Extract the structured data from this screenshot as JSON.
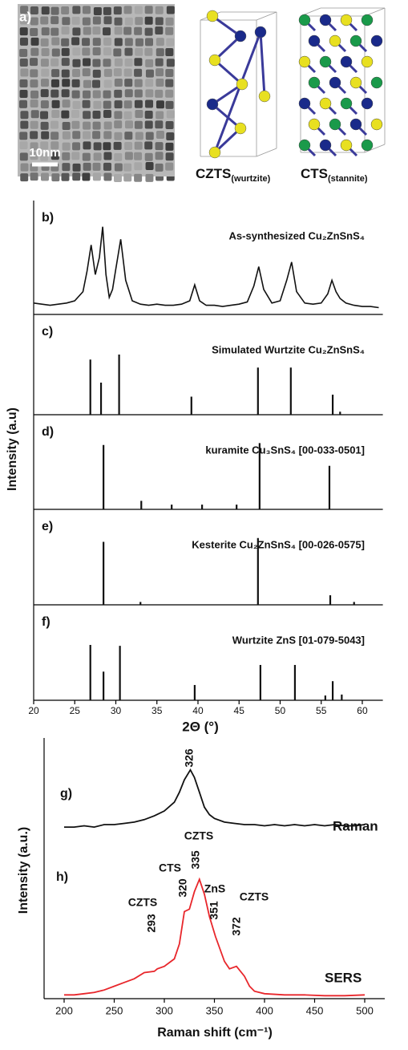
{
  "panel_a": {
    "label": "a)",
    "scale_bar": "10nm",
    "structures": [
      {
        "name": "CZTS",
        "subscript": "(wurtzite)"
      },
      {
        "name": "CTS",
        "subscript": "(stannite)"
      }
    ]
  },
  "chart_data": [
    {
      "type": "stacked",
      "xlabel": "2Θ (°)",
      "ylabel": "Intensity (a.u)",
      "xlim": [
        20,
        62.5
      ],
      "xticks": [
        20,
        25,
        30,
        35,
        40,
        45,
        50,
        55,
        60
      ],
      "panels": [
        {
          "type": "line",
          "label": "b)",
          "title": "As-synthesized Cu₂ZnSnS₄",
          "color": "#111111",
          "ylim": [
            0,
            1
          ],
          "x": [
            20,
            21,
            22,
            23,
            24,
            25,
            26,
            26.5,
            27,
            27.5,
            28,
            28.4,
            28.8,
            29.2,
            29.6,
            30,
            30.6,
            31.2,
            32,
            33,
            34,
            35,
            36,
            37,
            38,
            39,
            39.6,
            40.2,
            41,
            42,
            43,
            44,
            45,
            46,
            46.8,
            47.4,
            48,
            49,
            50,
            50.8,
            51.4,
            52,
            53,
            54,
            55,
            55.8,
            56.3,
            56.8,
            57.3,
            58,
            59,
            60,
            61,
            62
          ],
          "values": [
            0.1,
            0.09,
            0.08,
            0.09,
            0.1,
            0.12,
            0.2,
            0.38,
            0.61,
            0.35,
            0.5,
            0.77,
            0.35,
            0.15,
            0.22,
            0.4,
            0.66,
            0.3,
            0.12,
            0.09,
            0.08,
            0.09,
            0.08,
            0.08,
            0.09,
            0.12,
            0.26,
            0.12,
            0.08,
            0.08,
            0.07,
            0.08,
            0.09,
            0.11,
            0.25,
            0.42,
            0.22,
            0.1,
            0.12,
            0.3,
            0.46,
            0.2,
            0.1,
            0.09,
            0.1,
            0.18,
            0.3,
            0.2,
            0.14,
            0.1,
            0.08,
            0.07,
            0.07,
            0.06
          ]
        },
        {
          "type": "stick",
          "label": "c)",
          "title": "Simulated Wurtzite Cu₂ZnSnS₄",
          "color": "#111111",
          "ylim": [
            0,
            1
          ],
          "x": [
            26.9,
            28.2,
            30.4,
            39.2,
            47.3,
            51.3,
            56.4,
            57.3
          ],
          "values": [
            0.55,
            0.32,
            0.6,
            0.18,
            0.47,
            0.47,
            0.2,
            0.03
          ]
        },
        {
          "type": "stick",
          "label": "d)",
          "title": "kuramite Cu₃SnS₄ [00-033-0501]",
          "color": "#111111",
          "ylim": [
            0,
            1
          ],
          "x": [
            28.5,
            33.1,
            36.8,
            40.5,
            44.7,
            47.5,
            56.0
          ],
          "values": [
            0.68,
            0.09,
            0.05,
            0.05,
            0.05,
            0.7,
            0.46
          ]
        },
        {
          "type": "stick",
          "label": "e)",
          "title": "Kesterite Cu₂ZnSnS₄ [00-026-0575]",
          "color": "#111111",
          "ylim": [
            0,
            1
          ],
          "x": [
            28.5,
            33.0,
            47.3,
            56.1,
            59.0
          ],
          "values": [
            0.66,
            0.03,
            0.7,
            0.1,
            0.03
          ]
        },
        {
          "type": "stick",
          "label": "f)",
          "title": "Wurtzite ZnS [01-079-5043]",
          "color": "#111111",
          "ylim": [
            0,
            1
          ],
          "x": [
            26.9,
            28.5,
            30.5,
            39.6,
            47.6,
            51.8,
            55.5,
            56.4,
            57.5
          ],
          "values": [
            0.58,
            0.3,
            0.57,
            0.16,
            0.37,
            0.37,
            0.05,
            0.2,
            0.06
          ]
        }
      ]
    },
    {
      "type": "line",
      "xlabel": "Raman shift (cm⁻¹)",
      "ylabel": "Intensity (a.u.)",
      "xlim": [
        180,
        520
      ],
      "xticks": [
        200,
        250,
        300,
        350,
        400,
        450,
        500
      ],
      "ylim": [
        0,
        10
      ],
      "series": [
        {
          "name": "Raman",
          "label": "g)",
          "color": "#111111",
          "x": [
            200,
            210,
            220,
            230,
            240,
            250,
            260,
            270,
            280,
            290,
            300,
            310,
            315,
            320,
            326,
            330,
            335,
            340,
            345,
            350,
            360,
            370,
            380,
            390,
            400,
            410,
            420,
            430,
            440,
            450,
            460,
            470,
            480,
            490,
            500
          ],
          "values": [
            6.9,
            6.9,
            6.95,
            6.9,
            7.0,
            7.0,
            7.05,
            7.1,
            7.2,
            7.35,
            7.55,
            7.9,
            8.3,
            8.8,
            9.2,
            8.9,
            8.3,
            7.7,
            7.4,
            7.25,
            7.1,
            7.05,
            7.0,
            7.0,
            6.95,
            7.0,
            6.95,
            7.0,
            6.95,
            7.0,
            6.95,
            7.0,
            6.95,
            6.95,
            7.0
          ]
        },
        {
          "name": "SERS",
          "label": "h)",
          "color": "#e8262b",
          "x": [
            200,
            210,
            220,
            230,
            240,
            250,
            260,
            270,
            280,
            290,
            293,
            300,
            310,
            315,
            320,
            325,
            330,
            335,
            340,
            345,
            351,
            360,
            365,
            372,
            380,
            385,
            390,
            400,
            420,
            440,
            460,
            480,
            500
          ],
          "values": [
            0.15,
            0.15,
            0.2,
            0.25,
            0.35,
            0.5,
            0.65,
            0.8,
            1.05,
            1.1,
            1.2,
            1.3,
            1.6,
            2.2,
            3.5,
            3.6,
            4.3,
            4.8,
            4.2,
            3.3,
            2.5,
            1.5,
            1.2,
            1.3,
            0.9,
            0.5,
            0.3,
            0.2,
            0.15,
            0.15,
            0.12,
            0.12,
            0.15
          ]
        }
      ],
      "annotations": [
        "326",
        "CZTS",
        "335",
        "CTS",
        "320",
        "ZnS",
        "351",
        "CZTS",
        "293",
        "CZTS",
        "372"
      ]
    }
  ]
}
